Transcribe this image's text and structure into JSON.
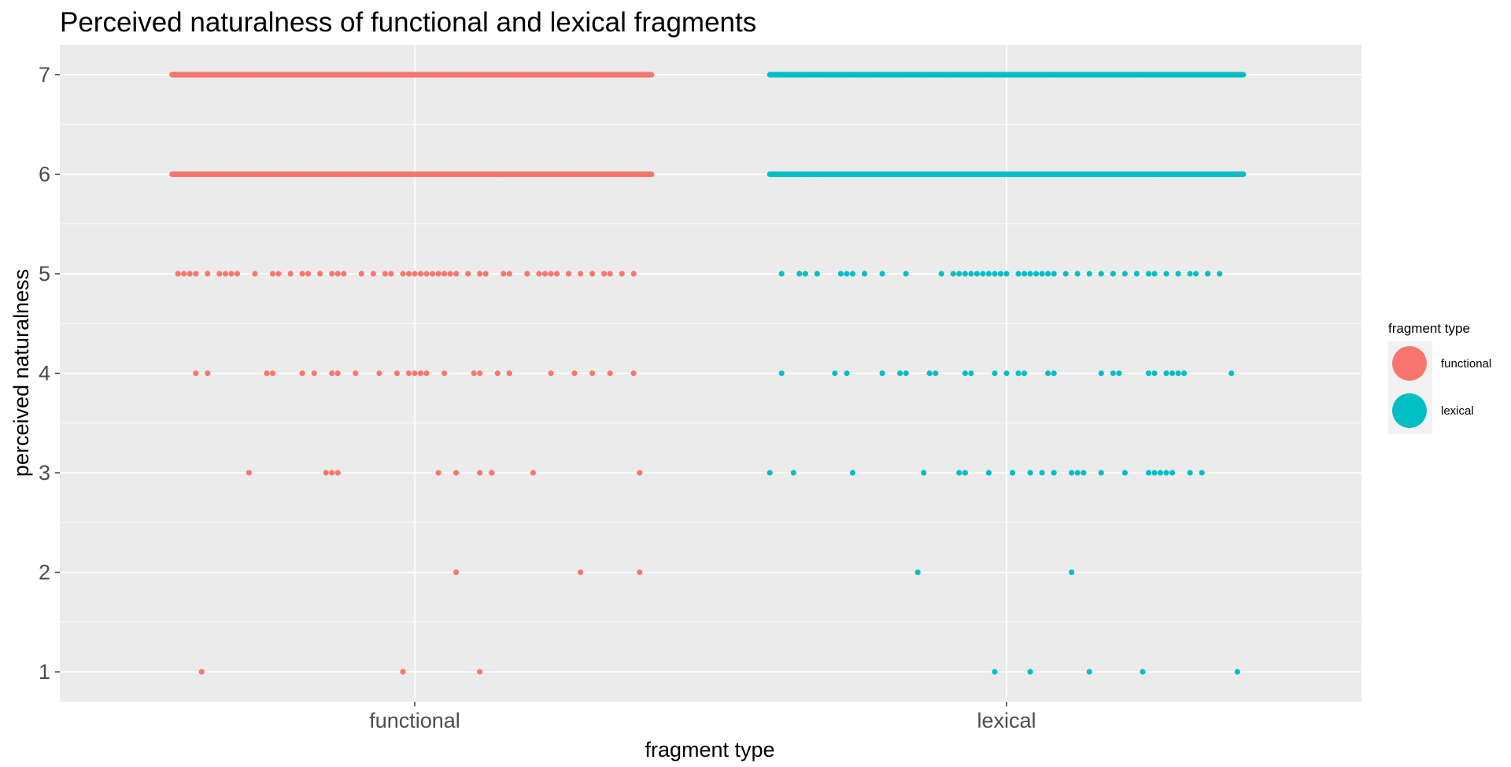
{
  "chart_data": {
    "type": "scatter",
    "title": "Perceived naturalness of functional and lexical fragments",
    "xlabel": "fragment type",
    "ylabel": "perceived naturalness",
    "categories": [
      "functional",
      "lexical"
    ],
    "ylim": [
      0.7,
      7.3
    ],
    "yticks": [
      1,
      2,
      3,
      4,
      5,
      6,
      7
    ],
    "grid": true,
    "legend": {
      "title": "fragment type",
      "position": "right"
    },
    "colors": {
      "functional": "#F8766D",
      "lexical": "#00BFC4",
      "panel": "#EBEBEB",
      "grid": "#FFFFFF"
    },
    "series": [
      {
        "name": "functional",
        "points": [
          {
            "y": 1,
            "x": [
              -0.36,
              -0.02,
              0.11
            ]
          },
          {
            "y": 2,
            "x": [
              0.07,
              0.28,
              0.38
            ]
          },
          {
            "y": 3,
            "x": [
              -0.28,
              -0.15,
              -0.14,
              -0.13,
              0.04,
              0.07,
              0.11,
              0.13,
              0.13,
              0.2,
              0.38
            ]
          },
          {
            "y": 4,
            "x": [
              -0.37,
              -0.35,
              -0.25,
              -0.24,
              -0.19,
              -0.17,
              -0.14,
              -0.13,
              -0.1,
              -0.06,
              -0.03,
              -0.01,
              0.0,
              0.01,
              0.02,
              0.05,
              0.1,
              0.11,
              0.14,
              0.16,
              0.23,
              0.27,
              0.3,
              0.33,
              0.37
            ]
          },
          {
            "y": 5,
            "x": [
              -0.4,
              -0.39,
              -0.38,
              -0.37,
              -0.35,
              -0.33,
              -0.32,
              -0.31,
              -0.3,
              -0.27,
              -0.24,
              -0.23,
              -0.21,
              -0.19,
              -0.18,
              -0.16,
              -0.14,
              -0.13,
              -0.12,
              -0.09,
              -0.07,
              -0.05,
              -0.04,
              -0.02,
              -0.01,
              0.0,
              0.01,
              0.02,
              0.03,
              0.04,
              0.05,
              0.06,
              0.07,
              0.09,
              0.11,
              0.12,
              0.15,
              0.16,
              0.19,
              0.21,
              0.22,
              0.23,
              0.24,
              0.26,
              0.28,
              0.3,
              0.32,
              0.33,
              0.35,
              0.37
            ]
          },
          {
            "y": 6,
            "range": [
              -0.41,
              0.4
            ],
            "count": 260
          },
          {
            "y": 7,
            "range": [
              -0.41,
              0.4
            ],
            "count": 420
          }
        ]
      },
      {
        "name": "lexical",
        "points": [
          {
            "y": 1,
            "x": [
              -0.02,
              0.04,
              0.14,
              0.23,
              0.39
            ]
          },
          {
            "y": 2,
            "x": [
              -0.15,
              0.11
            ]
          },
          {
            "y": 3,
            "x": [
              -0.4,
              -0.36,
              -0.26,
              -0.14,
              -0.08,
              -0.07,
              -0.03,
              0.01,
              0.04,
              0.06,
              0.08,
              0.11,
              0.12,
              0.13,
              0.16,
              0.2,
              0.24,
              0.25,
              0.26,
              0.27,
              0.28,
              0.31,
              0.33
            ]
          },
          {
            "y": 4,
            "x": [
              -0.38,
              -0.29,
              -0.27,
              -0.21,
              -0.18,
              -0.17,
              -0.13,
              -0.12,
              -0.07,
              -0.06,
              -0.02,
              0.0,
              0.02,
              0.03,
              0.07,
              0.08,
              0.16,
              0.18,
              0.19,
              0.24,
              0.25,
              0.27,
              0.28,
              0.29,
              0.3,
              0.38
            ]
          },
          {
            "y": 5,
            "x": [
              -0.38,
              -0.35,
              -0.34,
              -0.32,
              -0.28,
              -0.27,
              -0.26,
              -0.24,
              -0.21,
              -0.17,
              -0.11,
              -0.09,
              -0.08,
              -0.07,
              -0.06,
              -0.05,
              -0.04,
              -0.03,
              -0.02,
              -0.01,
              0.0,
              0.02,
              0.03,
              0.04,
              0.05,
              0.06,
              0.07,
              0.08,
              0.1,
              0.12,
              0.14,
              0.16,
              0.18,
              0.2,
              0.22,
              0.24,
              0.25,
              0.27,
              0.29,
              0.31,
              0.32,
              0.34,
              0.36
            ]
          },
          {
            "y": 6,
            "range": [
              -0.4,
              0.4
            ],
            "count": 260
          },
          {
            "y": 7,
            "range": [
              -0.4,
              0.4
            ],
            "count": 420
          }
        ]
      }
    ]
  }
}
